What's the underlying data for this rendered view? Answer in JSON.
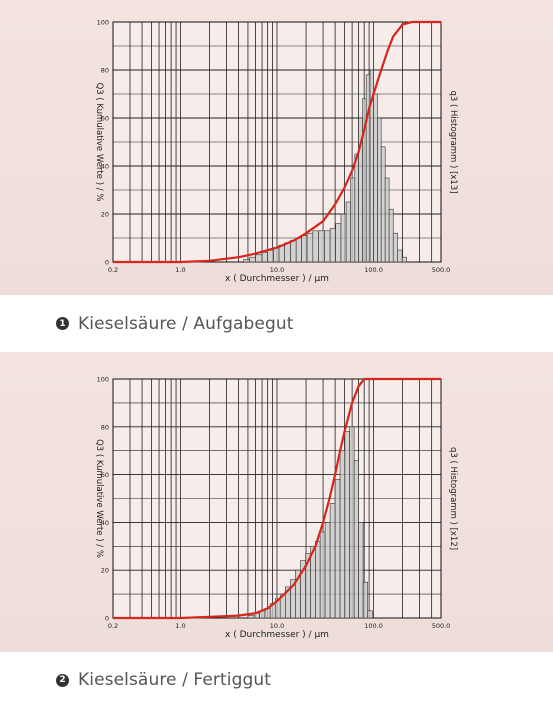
{
  "colors": {
    "curve": "#d7261c",
    "bars": "#c8c8c8",
    "bar_stroke": "#333333",
    "grid": "#222222"
  },
  "chart_data": [
    {
      "type": "bar",
      "caption_number": "1",
      "caption": "Kieselsäure / Aufgabegut",
      "xlabel": "x ( Durchmesser ) / µm",
      "ylabel_left": "Q3 ( Kumulative Werte ) / %",
      "ylabel_right": "q3 ( Histogramm ) [x13]",
      "x_scale": "log",
      "xlim": [
        0.2,
        500.0
      ],
      "ylim": [
        0,
        100
      ],
      "x_ticks": [
        "0.2",
        "1.0",
        "10.0",
        "100.0",
        "500.0"
      ],
      "y_ticks": [
        "0",
        "20",
        "40",
        "60",
        "80",
        "100"
      ],
      "histogram": {
        "x": [
          4.5,
          5.2,
          6.0,
          7.0,
          8.0,
          9.2,
          10.5,
          12,
          13.8,
          15.8,
          18,
          20.5,
          23.5,
          27,
          31,
          35.5,
          40.5,
          46,
          52,
          58,
          64,
          70,
          77,
          84,
          92,
          100,
          110,
          120,
          132,
          145,
          160,
          178,
          198
        ],
        "values": [
          1,
          2,
          3,
          4,
          5,
          6,
          7,
          8,
          9,
          10,
          11,
          12,
          13,
          13,
          13,
          14,
          16,
          20,
          25,
          35,
          45,
          60,
          68,
          78,
          80,
          70,
          60,
          48,
          35,
          22,
          12,
          5,
          2
        ]
      },
      "cumulative": {
        "x": [
          0.2,
          1.0,
          2.0,
          4.0,
          6.0,
          10.0,
          15.0,
          20.0,
          30.0,
          40.0,
          50.0,
          60.0,
          70.0,
          80.0,
          90.0,
          100.0,
          120.0,
          140.0,
          160.0,
          200.0,
          250.0,
          500.0
        ],
        "values": [
          0,
          0,
          0.5,
          2,
          3.5,
          6,
          9,
          12,
          17,
          24,
          31,
          38,
          46,
          55,
          64,
          70,
          80,
          88,
          94,
          99,
          100,
          100
        ]
      }
    },
    {
      "type": "bar",
      "caption_number": "2",
      "caption": "Kieselsäure / Fertiggut",
      "xlabel": "x ( Durchmesser ) / µm",
      "ylabel_left": "Q3 ( Kumulative Werte ) / %",
      "ylabel_right": "q3 ( Histogramm ) [x12]",
      "x_scale": "log",
      "xlim": [
        0.2,
        500.0
      ],
      "ylim": [
        0,
        100
      ],
      "x_ticks": [
        "0.2",
        "1.0",
        "10.0",
        "100.0",
        "500.0"
      ],
      "y_ticks": [
        "0",
        "20",
        "40",
        "60",
        "80",
        "100"
      ],
      "histogram": {
        "x": [
          5.0,
          5.8,
          6.6,
          7.5,
          8.5,
          9.6,
          10.8,
          12.2,
          13.8,
          15.5,
          17.5,
          19.8,
          22.3,
          25,
          28,
          31.5,
          35.5,
          40,
          45,
          50.5,
          56.5,
          63,
          70,
          78,
          87
        ],
        "values": [
          1,
          2,
          3,
          4,
          6,
          8,
          10,
          13,
          16,
          20,
          24,
          27,
          30,
          32,
          36,
          40,
          48,
          58,
          70,
          78,
          80,
          66,
          40,
          15,
          3
        ]
      },
      "cumulative": {
        "x": [
          0.2,
          1.0,
          2.0,
          4.0,
          6.0,
          8.0,
          10.0,
          15.0,
          20.0,
          25.0,
          30.0,
          35.0,
          40.0,
          45.0,
          50.0,
          60.0,
          70.0,
          80.0,
          100.0,
          500.0
        ],
        "values": [
          0,
          0,
          0.5,
          1,
          2,
          4,
          7,
          14,
          22,
          30,
          40,
          50,
          60,
          70,
          78,
          90,
          97,
          100,
          100,
          100
        ]
      }
    }
  ]
}
